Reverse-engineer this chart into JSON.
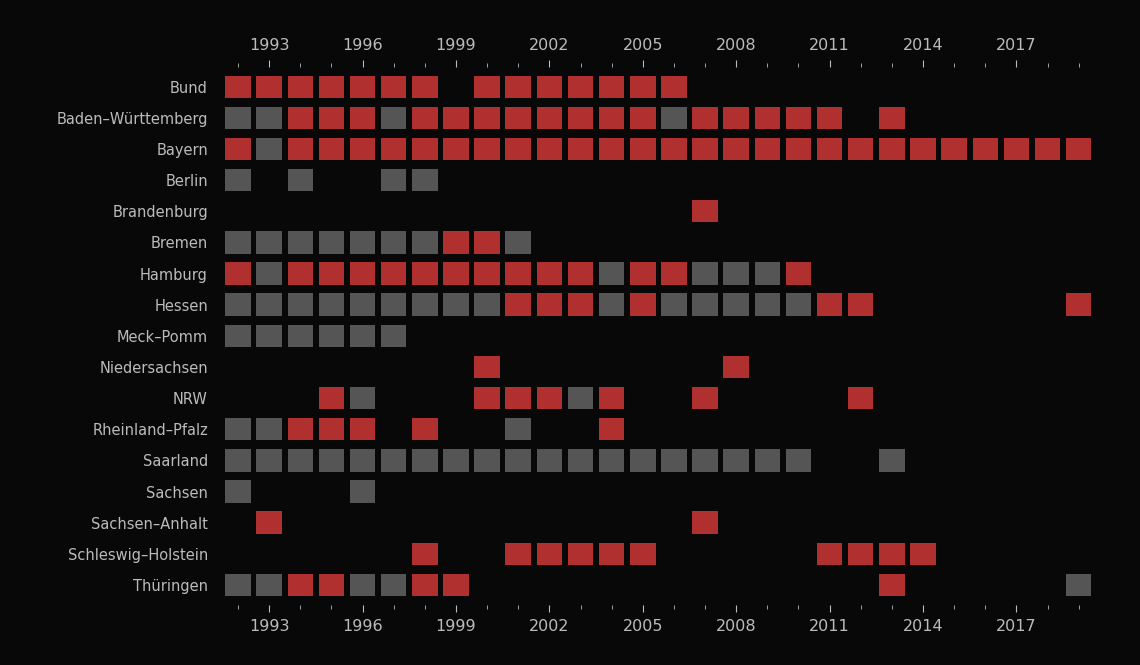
{
  "regions": [
    "Bund",
    "Baden–Württemberg",
    "Bayern",
    "Berlin",
    "Brandenburg",
    "Bremen",
    "Hamburg",
    "Hessen",
    "Meck–Pomm",
    "Niedersachsen",
    "NRW",
    "Rheinland–Pfalz",
    "Saarland",
    "Sachsen",
    "Sachsen–Anhalt",
    "Schleswig–Holstein",
    "Thüringen"
  ],
  "year_start": 1992,
  "year_end": 2019,
  "cell_data": {
    "Bund": {
      "red": [
        1992,
        1993,
        1994,
        1995,
        1996,
        1997,
        1998,
        2000,
        2001,
        2002,
        2003,
        2004,
        2005,
        2006
      ],
      "gray": []
    },
    "Baden–Württemberg": {
      "red": [
        1994,
        1995,
        1996,
        1998,
        1999,
        2000,
        2001,
        2002,
        2003,
        2004,
        2005,
        2007,
        2008,
        2009,
        2010,
        2011,
        2013
      ],
      "gray": [
        1992,
        1993,
        1997,
        2006
      ]
    },
    "Bayern": {
      "red": [
        1992,
        1994,
        1995,
        1996,
        1997,
        1998,
        1999,
        2000,
        2001,
        2002,
        2003,
        2004,
        2005,
        2006,
        2007,
        2008,
        2009,
        2010,
        2011,
        2012,
        2013,
        2014,
        2015,
        2016,
        2017,
        2018,
        2019
      ],
      "gray": [
        1993
      ]
    },
    "Berlin": {
      "red": [],
      "gray": [
        1992,
        1994,
        1997,
        1998
      ]
    },
    "Brandenburg": {
      "red": [
        2007
      ],
      "gray": []
    },
    "Bremen": {
      "red": [
        1999,
        2000
      ],
      "gray": [
        1992,
        1993,
        1994,
        1995,
        1996,
        1997,
        1998,
        2001
      ]
    },
    "Hamburg": {
      "red": [
        1992,
        1994,
        1995,
        1996,
        1997,
        1998,
        1999,
        2000,
        2001,
        2002,
        2003,
        2005,
        2006,
        2010
      ],
      "gray": [
        1993,
        2004,
        2007,
        2008,
        2009
      ]
    },
    "Hessen": {
      "red": [
        2001,
        2002,
        2003,
        2005,
        2011,
        2012,
        2019
      ],
      "gray": [
        1992,
        1993,
        1994,
        1995,
        1996,
        1997,
        1998,
        1999,
        2000,
        2004,
        2006,
        2007,
        2008,
        2009,
        2010
      ]
    },
    "Meck–Pomm": {
      "red": [],
      "gray": [
        1992,
        1993,
        1994,
        1995,
        1996,
        1997
      ]
    },
    "Niedersachsen": {
      "red": [
        2000,
        2008
      ],
      "gray": []
    },
    "NRW": {
      "red": [
        1995,
        2000,
        2001,
        2002,
        2004,
        2007,
        2012
      ],
      "gray": [
        1996,
        2003
      ]
    },
    "Rheinland–Pfalz": {
      "red": [
        1994,
        1995,
        1996,
        1998,
        2004
      ],
      "gray": [
        1992,
        1993,
        2001
      ]
    },
    "Saarland": {
      "red": [],
      "gray": [
        1992,
        1993,
        1994,
        1995,
        1996,
        1997,
        1998,
        1999,
        2000,
        2001,
        2002,
        2003,
        2004,
        2005,
        2006,
        2007,
        2008,
        2009,
        2010,
        2013
      ]
    },
    "Sachsen": {
      "red": [],
      "gray": [
        1992,
        1996
      ]
    },
    "Sachsen–Anhalt": {
      "red": [
        1993,
        2007
      ],
      "gray": []
    },
    "Schleswig–Holstein": {
      "red": [
        1998,
        2001,
        2002,
        2003,
        2004,
        2005,
        2011,
        2012,
        2013,
        2014
      ],
      "gray": []
    },
    "Thüringen": {
      "red": [
        1994,
        1995,
        1998,
        1999,
        2013
      ],
      "gray": [
        1992,
        1993,
        1996,
        1997,
        2019
      ]
    }
  },
  "red_color": "#b03030",
  "gray_color": "#555555",
  "bg_color": "#080808",
  "text_color": "#bbbbbb",
  "tick_label_years": [
    1993,
    1996,
    1999,
    2002,
    2005,
    2008,
    2011,
    2014,
    2017
  ]
}
